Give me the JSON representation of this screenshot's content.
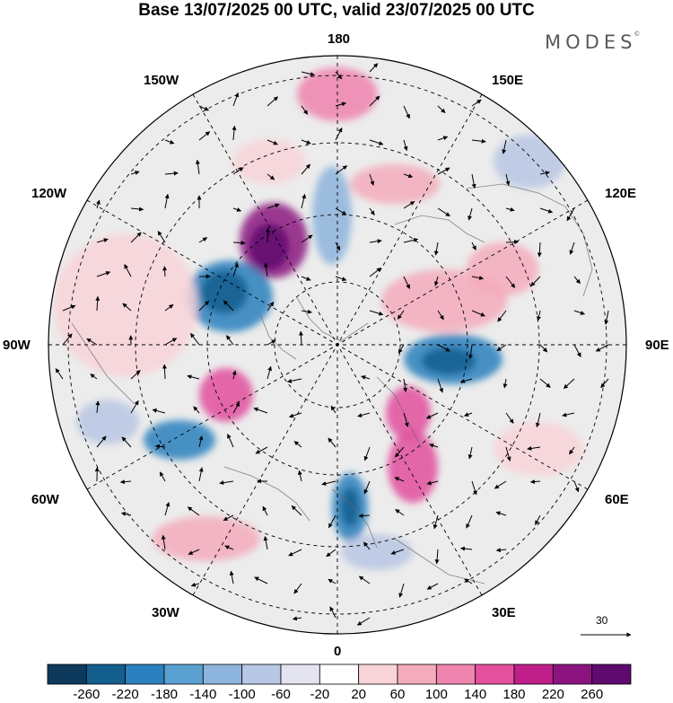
{
  "title": "Base 13/07/2025 00 UTC, valid 23/07/2025 00 UTC",
  "brand": {
    "text": "MODES",
    "mark": "©"
  },
  "map": {
    "projection": "north-polar-stereographic",
    "longitude_labels": {
      "top": "180",
      "bottom": "0",
      "left": "90W",
      "right": "90E",
      "upper_left_1": "150W",
      "upper_left_2": "120W",
      "lower_left_1": "60W",
      "lower_left_2": "30W",
      "upper_right_1": "150E",
      "upper_right_2": "120E",
      "lower_right_1": "60E",
      "lower_right_2": "30E"
    },
    "vector_scale_label": "30",
    "palette": [
      "#0d3a5c",
      "#145e8e",
      "#2c80bd",
      "#5aa0d0",
      "#8db4dc",
      "#b8c7e4",
      "#e4e4f0",
      "#ffffff",
      "#f8d4d8",
      "#f4acbc",
      "#ef84ae",
      "#e2509e",
      "#c01f89",
      "#8c1480",
      "#5e0a6e"
    ],
    "colorbar_ticks": [
      "-260",
      "-220",
      "-180",
      "-140",
      "-100",
      "-60",
      "-20",
      "20",
      "60",
      "100",
      "140",
      "180",
      "220",
      "260"
    ]
  }
}
